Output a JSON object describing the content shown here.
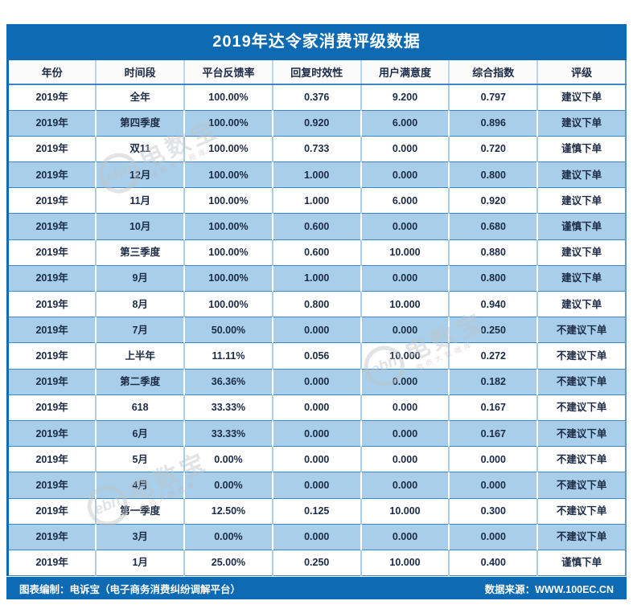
{
  "title": "2019年达令家消费评级数据",
  "watermark": {
    "logo": "ebn",
    "brand": "电数宝",
    "sub": "电商大数据库"
  },
  "footer": {
    "left": "图表编制：电诉宝（电子商务消费纠纷调解平台）",
    "right": "数据来源：WWW.100EC.CN"
  },
  "colors": {
    "header_blue": "#0e6ab2",
    "row_light_blue": "#a9cee9",
    "grid_blue": "#3d87c6",
    "text_navy": "#1b2a45"
  },
  "chart_data": {
    "type": "table",
    "title": "2019年达令家消费评级数据",
    "columns": [
      "年份",
      "时间段",
      "平台反馈率",
      "回复时效性",
      "用户满意度",
      "综合指数",
      "评级"
    ],
    "rows": [
      [
        "2019年",
        "全年",
        "100.00%",
        "0.376",
        "9.200",
        "0.797",
        "建议下单"
      ],
      [
        "2019年",
        "第四季度",
        "100.00%",
        "0.920",
        "6.000",
        "0.896",
        "建议下单"
      ],
      [
        "2019年",
        "双11",
        "100.00%",
        "0.733",
        "0.000",
        "0.720",
        "谨慎下单"
      ],
      [
        "2019年",
        "12月",
        "100.00%",
        "1.000",
        "0.000",
        "0.800",
        "建议下单"
      ],
      [
        "2019年",
        "11月",
        "100.00%",
        "1.000",
        "6.000",
        "0.920",
        "建议下单"
      ],
      [
        "2019年",
        "10月",
        "100.00%",
        "0.600",
        "0.000",
        "0.680",
        "谨慎下单"
      ],
      [
        "2019年",
        "第三季度",
        "100.00%",
        "0.600",
        "10.000",
        "0.880",
        "建议下单"
      ],
      [
        "2019年",
        "9月",
        "100.00%",
        "1.000",
        "0.000",
        "0.800",
        "建议下单"
      ],
      [
        "2019年",
        "8月",
        "100.00%",
        "0.800",
        "10.000",
        "0.940",
        "建议下单"
      ],
      [
        "2019年",
        "7月",
        "50.00%",
        "0.000",
        "0.000",
        "0.250",
        "不建议下单"
      ],
      [
        "2019年",
        "上半年",
        "11.11%",
        "0.056",
        "10.000",
        "0.272",
        "不建议下单"
      ],
      [
        "2019年",
        "第二季度",
        "36.36%",
        "0.000",
        "0.000",
        "0.182",
        "不建议下单"
      ],
      [
        "2019年",
        "618",
        "33.33%",
        "0.000",
        "0.000",
        "0.167",
        "不建议下单"
      ],
      [
        "2019年",
        "6月",
        "33.33%",
        "0.000",
        "0.000",
        "0.167",
        "不建议下单"
      ],
      [
        "2019年",
        "5月",
        "0.00%",
        "0.000",
        "0.000",
        "0.000",
        "不建议下单"
      ],
      [
        "2019年",
        "4月",
        "0.00%",
        "0.000",
        "0.000",
        "0.000",
        "不建议下单"
      ],
      [
        "2019年",
        "第一季度",
        "12.50%",
        "0.125",
        "10.000",
        "0.300",
        "不建议下单"
      ],
      [
        "2019年",
        "3月",
        "0.00%",
        "0.000",
        "0.000",
        "0.000",
        "不建议下单"
      ],
      [
        "2019年",
        "1月",
        "25.00%",
        "0.250",
        "10.000",
        "0.400",
        "谨慎下单"
      ]
    ]
  }
}
